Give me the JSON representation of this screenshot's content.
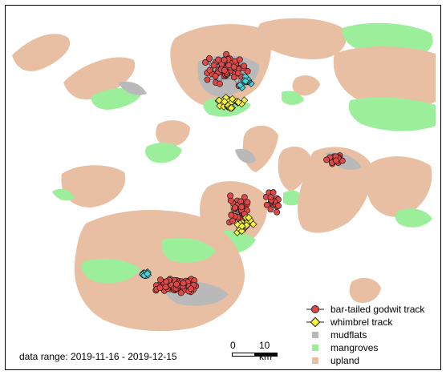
{
  "map": {
    "colors": {
      "mudflats": "#b9b9b9",
      "mangroves": "#9bef9b",
      "upland": "#e8bfa2",
      "water": "#ffffff",
      "godwit_fill": "#e04848",
      "godwit_line": "#1a1a1a",
      "whimbrel_fill": "#f4f23a",
      "cyan_fill": "#3fd6dc"
    }
  },
  "legend": {
    "items": [
      {
        "label": "bar-tailed godwit track",
        "symbol": "godwit"
      },
      {
        "label": "whimbrel track",
        "symbol": "whimbrel"
      },
      {
        "label": "mudflats",
        "symbol": "mudflats"
      },
      {
        "label": "mangroves",
        "symbol": "mangroves"
      },
      {
        "label": "upland",
        "symbol": "upland"
      }
    ]
  },
  "scalebar": {
    "label_zero": "0",
    "label_end": "10 km"
  },
  "data_range": {
    "label": "data range: 2019-11-16 - 2019-12-15"
  }
}
